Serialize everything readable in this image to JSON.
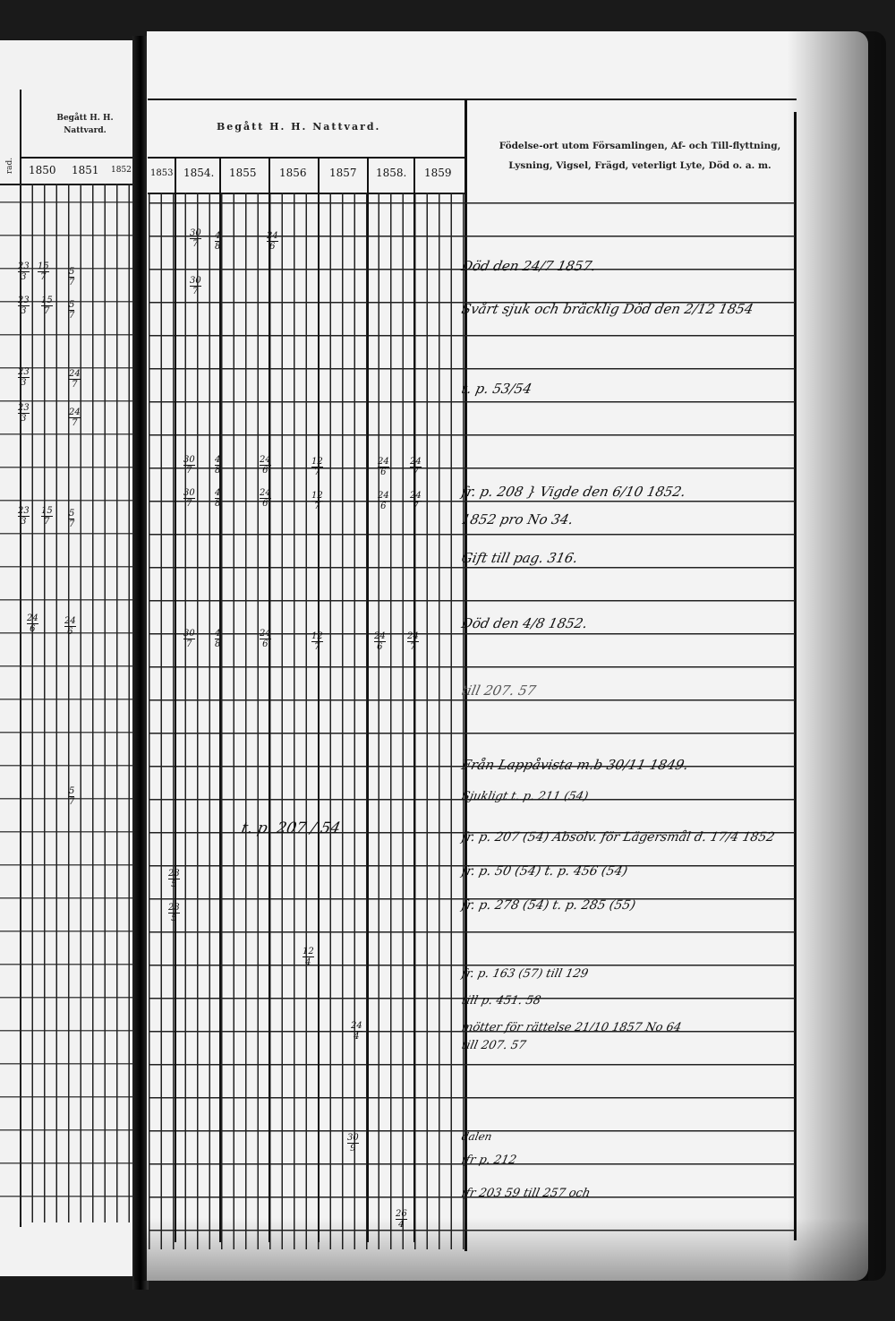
{
  "left_page": {
    "column_label_fragment": "rad.",
    "header": "Begått H. H. Nattvard.",
    "years": [
      "1850",
      "1851",
      "1852"
    ]
  },
  "right_page": {
    "header": "Begått H. H. Nattvard.",
    "years": [
      "1853",
      "1854.",
      "1855",
      "1856",
      "1857",
      "1858.",
      "1859"
    ],
    "remarks_header_line1": "Födelse-ort utom Församlingen, Af- och Till-flyttning,",
    "remarks_header_line2": "Lysning, Vigsel, Frägd, veterligt Lyte, Död o. a. m.",
    "notes": [
      "Död den 24/7 1857.",
      "Svårt sjuk och bräcklig Död den 2/12 1854",
      "t. p. 53/54",
      "fr. p. 208   } Vigde den 6/10 1852.",
      "1852 pro No 34.",
      "Gift till pag. 316.",
      "Död den 4/8 1852.",
      "till 207. 57",
      "Från Lappåvista m.b 30/11 1849.",
      "Sjukligt t. p. 211 (54)",
      "fr. p. 207 (54) Absolv. för Lägersmål d. 17/4 1852",
      "fr. p. 50 (54) t. p. 456 (54)",
      "fr. p. 278 (54) t. p. 285 (55)",
      "fr. p. 163 (57) till 129",
      "till p. 451. 58",
      "mötter för rättelse 21/10 1857 No 64",
      "till 207. 57",
      "dalen",
      "ifr p. 212",
      "ifr 203 59 till 257 och"
    ],
    "grid_note": "t. p. 207 / 54"
  },
  "marks": [
    [
      "30",
      "7"
    ],
    [
      "4",
      "8"
    ],
    [
      "24",
      "6"
    ],
    [
      "30",
      "7"
    ],
    [
      "30",
      "7"
    ],
    [
      "4",
      "8"
    ],
    [
      "24",
      "6"
    ],
    [
      "12",
      "7"
    ],
    [
      "24",
      "6"
    ],
    [
      "24",
      "7"
    ],
    [
      "30",
      "7"
    ],
    [
      "4",
      "8"
    ],
    [
      "24",
      "6"
    ],
    [
      "12",
      "7"
    ],
    [
      "24",
      "6"
    ],
    [
      "24",
      "7"
    ],
    [
      "30",
      "7"
    ],
    [
      "4",
      "8"
    ],
    [
      "24",
      "6"
    ],
    [
      "12",
      "7"
    ],
    [
      "24",
      "6"
    ],
    [
      "24",
      "7"
    ],
    [
      "23",
      "5"
    ],
    [
      "23",
      "5"
    ],
    [
      "12",
      "4"
    ],
    [
      "24",
      "4"
    ],
    [
      "30",
      "9"
    ],
    [
      "26",
      "4"
    ]
  ],
  "left_marks": [
    [
      "23",
      "3"
    ],
    [
      "15",
      "7"
    ],
    [
      "5",
      "7"
    ],
    [
      "23",
      "3"
    ],
    [
      "15",
      "7"
    ],
    [
      "5",
      "7"
    ],
    [
      "23",
      "3"
    ],
    [
      "24",
      "7"
    ],
    [
      "23",
      "3"
    ],
    [
      "24",
      "7"
    ],
    [
      "23",
      "3"
    ],
    [
      "15",
      "7"
    ],
    [
      "5",
      "7"
    ],
    [
      "24",
      "6"
    ],
    [
      "24",
      "6"
    ],
    [
      "5",
      "7"
    ]
  ]
}
